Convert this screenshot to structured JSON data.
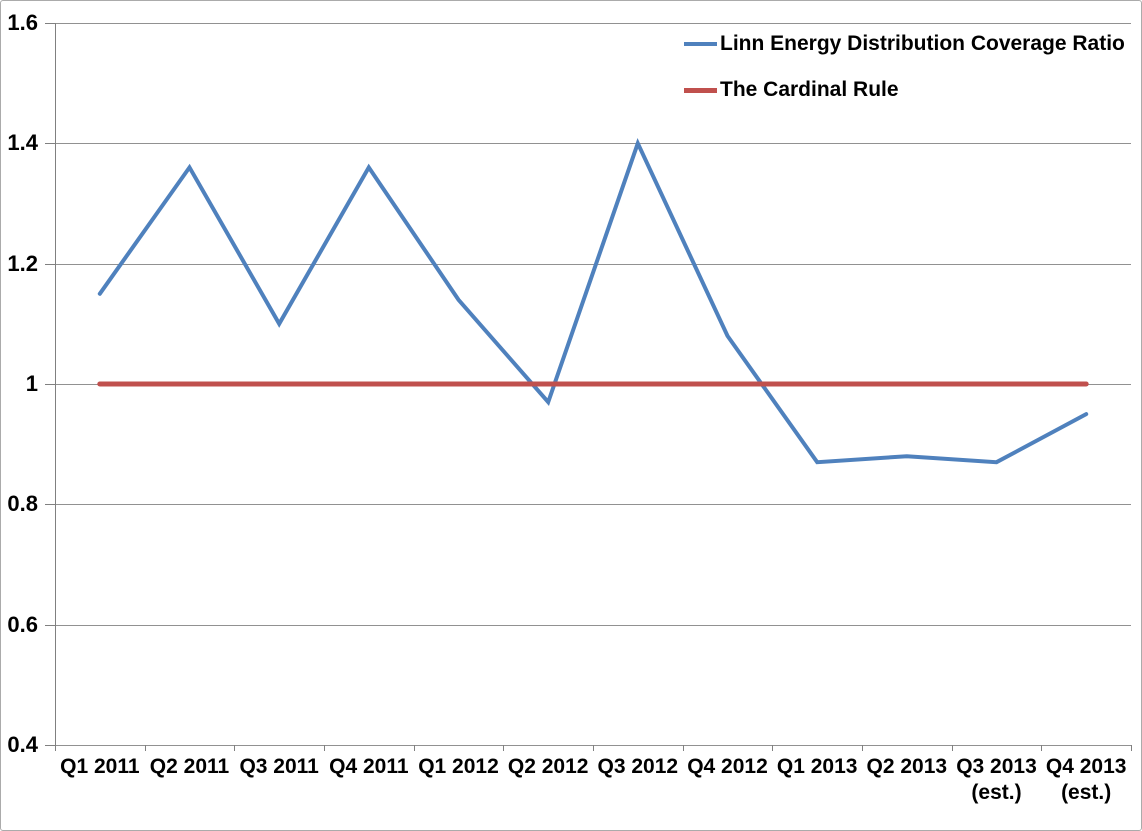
{
  "chart_data": {
    "type": "line",
    "title": "",
    "xlabel": "",
    "ylabel": "",
    "categories": [
      "Q1 2011",
      "Q2 2011",
      "Q3 2011",
      "Q4 2011",
      "Q1 2012",
      "Q2 2012",
      "Q3 2012",
      "Q4 2012",
      "Q1 2013",
      "Q2 2013",
      "Q3 2013 (est.)",
      "Q4 2013 (est.)"
    ],
    "series": [
      {
        "name": "Linn Energy Distribution Coverage Ratio",
        "color": "#4F81BD",
        "line_width": 4,
        "values": [
          1.15,
          1.36,
          1.1,
          1.36,
          1.14,
          0.97,
          1.4,
          1.08,
          0.87,
          0.88,
          0.87,
          0.95
        ]
      },
      {
        "name": "The Cardinal Rule",
        "color": "#C0504D",
        "line_width": 5,
        "values": [
          1.0,
          1.0,
          1.0,
          1.0,
          1.0,
          1.0,
          1.0,
          1.0,
          1.0,
          1.0,
          1.0,
          1.0
        ]
      }
    ],
    "ylim": [
      0.4,
      1.6
    ],
    "ytick_values": [
      1.6,
      1.4,
      1.2,
      1.0,
      0.8,
      0.6,
      0.4
    ],
    "ytick_labels": [
      "1.6",
      "1.4",
      "1.2",
      "1",
      "0.8",
      "0.6",
      "0.4"
    ],
    "grid": true,
    "legend_position": "top-right"
  },
  "colors": {
    "gridline": "#919191",
    "axis": "#808080",
    "text": "#000000",
    "frame_border": "#ababab",
    "background": "#ffffff"
  }
}
